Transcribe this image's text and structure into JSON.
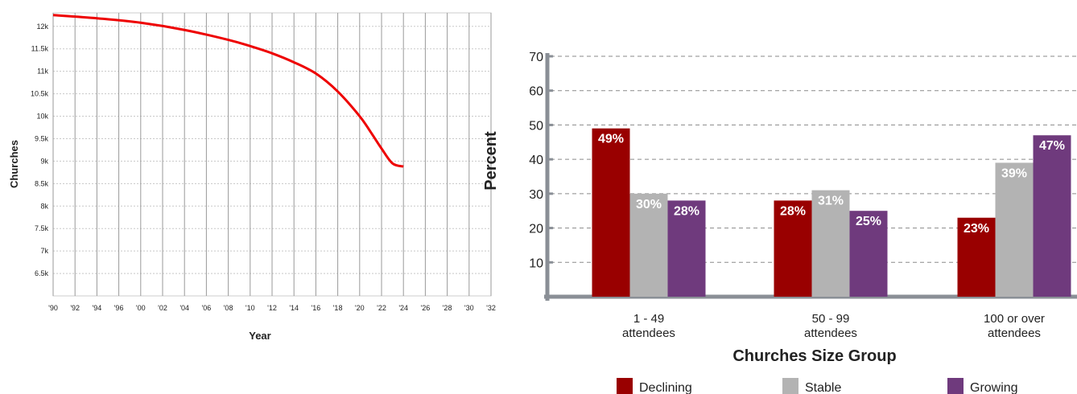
{
  "chart_data": [
    {
      "type": "line",
      "title": "",
      "xlabel": "Year",
      "ylabel": "Churches",
      "x_tick_labels": [
        "'90",
        "'92",
        "'94",
        "'96",
        "'00",
        "'02",
        "'04",
        "'06",
        "'08",
        "'10",
        "'12",
        "'14",
        "'16",
        "'18",
        "'20",
        "'22",
        "'24",
        "'26",
        "'28",
        "'30",
        "'32"
      ],
      "y_tick_labels": [
        "6.5k",
        "7k",
        "7.5k",
        "8k",
        "8.5k",
        "9k",
        "9.5k",
        "10k",
        "10.5k",
        "11k",
        "11.5k",
        "12k"
      ],
      "y_tick_values": [
        6500,
        7000,
        7500,
        8000,
        8500,
        9000,
        9500,
        10000,
        10500,
        11000,
        11500,
        12000
      ],
      "ylim": [
        6000,
        12300
      ],
      "x_index_range": [
        0,
        20
      ],
      "grid": true,
      "series": [
        {
          "color": "#ee0000",
          "x_index": [
            0,
            2,
            4,
            6,
            8,
            9,
            10,
            11,
            12,
            13,
            14,
            14.5,
            15,
            15.5,
            16
          ],
          "values": [
            12250,
            12180,
            12080,
            11920,
            11700,
            11560,
            11400,
            11200,
            10950,
            10550,
            10000,
            9650,
            9280,
            8950,
            8880
          ]
        }
      ]
    },
    {
      "type": "bar",
      "title": "",
      "xlabel": "Churches Size Group",
      "ylabel": "Percent",
      "ylim": [
        0,
        70
      ],
      "y_ticks": [
        10,
        20,
        30,
        40,
        50,
        60,
        70
      ],
      "grid": true,
      "legend_position": "bottom",
      "categories": [
        {
          "line1": "1 - 49",
          "line2": "attendees"
        },
        {
          "line1": "50 - 99",
          "line2": "attendees"
        },
        {
          "line1": "100 or over",
          "line2": "attendees"
        }
      ],
      "series": [
        {
          "name": "Declining",
          "color": "#990000",
          "values": [
            49,
            28,
            23
          ],
          "labels": [
            "49%",
            "28%",
            "23%"
          ]
        },
        {
          "name": "Stable",
          "color": "#b3b3b3",
          "values": [
            30,
            31,
            39
          ],
          "labels": [
            "30%",
            "31%",
            "39%"
          ]
        },
        {
          "name": "Growing",
          "color": "#6f3a7d",
          "values": [
            28,
            25,
            47
          ],
          "labels": [
            "28%",
            "25%",
            "47%"
          ]
        }
      ]
    }
  ]
}
